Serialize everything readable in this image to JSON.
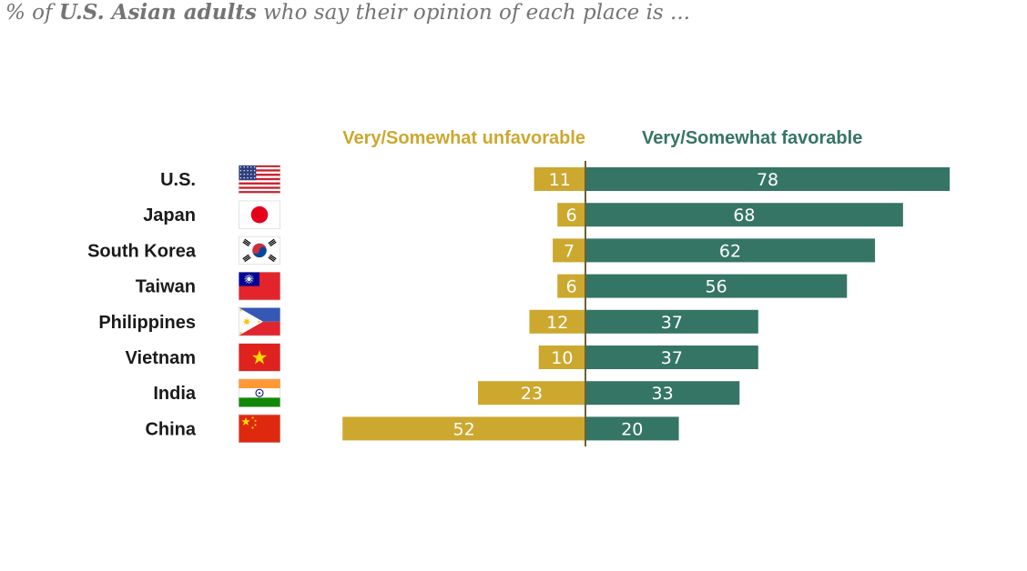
{
  "subtitle": {
    "prefix": "% of ",
    "emphasis": "U.S. Asian adults",
    "suffix": " who say their opinion of each place is ..."
  },
  "colors": {
    "unfavorable": "#cca82f",
    "favorable": "#357565",
    "axis": "#6b6035"
  },
  "chart_data": {
    "type": "bar",
    "orientation": "horizontal-diverging",
    "categories": [
      "U.S.",
      "Japan",
      "South Korea",
      "Taiwan",
      "Philippines",
      "Vietnam",
      "India",
      "China"
    ],
    "flag_icons": [
      "us-flag-icon",
      "japan-flag-icon",
      "south-korea-flag-icon",
      "taiwan-flag-icon",
      "philippines-flag-icon",
      "vietnam-flag-icon",
      "india-flag-icon",
      "china-flag-icon"
    ],
    "series": [
      {
        "name": "Very/Somewhat unfavorable",
        "values": [
          11,
          6,
          7,
          6,
          12,
          10,
          23,
          52
        ]
      },
      {
        "name": "Very/Somewhat favorable",
        "values": [
          78,
          68,
          62,
          56,
          37,
          37,
          33,
          20
        ]
      }
    ]
  }
}
